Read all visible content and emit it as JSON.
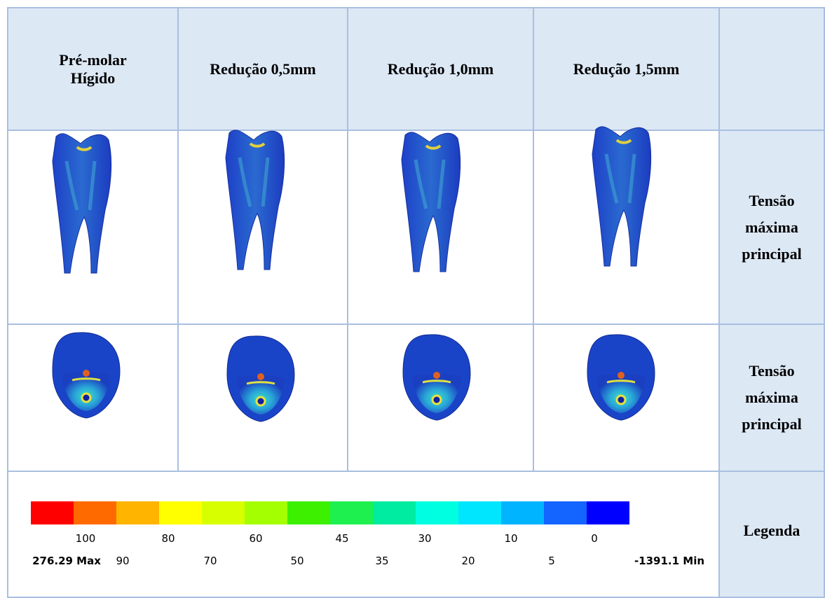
{
  "table": {
    "header": [
      "Pré-molar Hígido",
      "Redução 0,5mm",
      "Redução 1,0mm",
      "Redução 1,5mm"
    ],
    "row_labels": [
      "Tensão máxima principal",
      "Tensão máxima principal",
      "Legenda"
    ]
  },
  "legend": {
    "top_labels": [
      "100",
      "80",
      "60",
      "45",
      "30",
      "10",
      "0"
    ],
    "bottom_labels": [
      "276.29 Max",
      "90",
      "70",
      "50",
      "35",
      "20",
      "5",
      "-1391.1 Min"
    ]
  }
}
